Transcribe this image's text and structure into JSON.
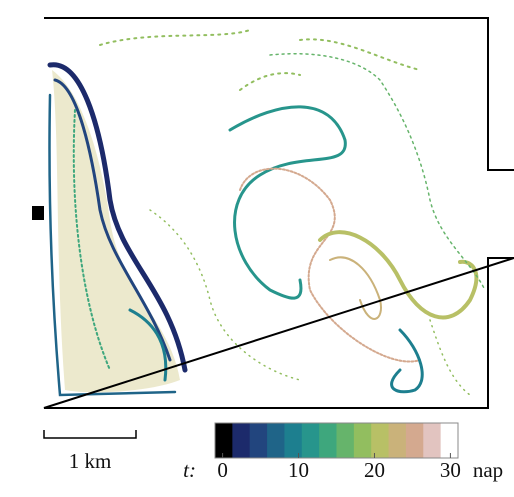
{
  "scale_bar": {
    "label": "1 km"
  },
  "colorbar": {
    "label": "t:",
    "unit": "nap",
    "lim": [
      -1,
      31
    ],
    "ticks": [
      0,
      10,
      20,
      30
    ],
    "colors": [
      "#000000",
      "#1c2a6b",
      "#22457e",
      "#1f6488",
      "#1d7f8f",
      "#27958c",
      "#3ea77d",
      "#66b46b",
      "#92be5f",
      "#b8c066",
      "#cab27a",
      "#d4a98f",
      "#e2c4c0",
      "#ffffff"
    ]
  }
}
